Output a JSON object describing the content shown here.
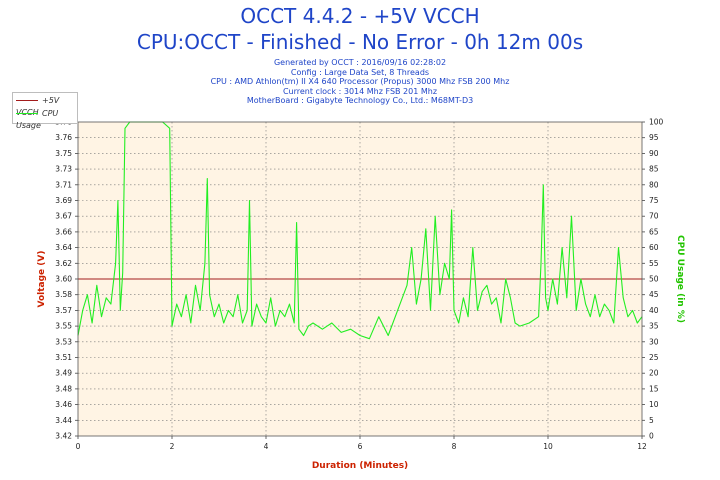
{
  "title_line1": "OCCT 4.4.2 - +5V VCCH",
  "title_line2": "CPU:OCCT - Finished - No Error - 0h 12m 00s",
  "info": {
    "generated": "Generated by OCCT : 2016/09/16 02:28:02",
    "config": "Config : Large Data Set, 8 Threads",
    "cpu": "CPU : AMD Athlon(tm) II X4 640 Processor (Propus) 3000 Mhz FSB 200 Mhz",
    "clock": "Current clock : 3014 Mhz FSB 201 Mhz",
    "motherboard": "MotherBoard : Gigabyte Technology Co., Ltd.: M68MT-D3"
  },
  "colors": {
    "title": "#1f45c8",
    "voltage_line": "#a31b1b",
    "cpu_line": "#22ee22",
    "axis_label": "#cc2200",
    "cpu_axis_label": "#22c400",
    "plot_background": "#fff4e4"
  },
  "chart_data": {
    "type": "line",
    "xlabel": "Duration (Minutes)",
    "ylabel": "Voltage (V)",
    "y2label": "CPU Usage (in %)",
    "xlim": [
      0,
      12
    ],
    "ylim": [
      3.42,
      3.78
    ],
    "y2lim": [
      0,
      100
    ],
    "x_ticks": [
      "0",
      "2",
      "4",
      "6",
      "8",
      "10",
      "12"
    ],
    "y_ticks": [
      "3.42",
      "3.44",
      "3.46",
      "3.48",
      "3.49",
      "3.51",
      "3.53",
      "3.55",
      "3.57",
      "3.58",
      "3.60",
      "3.62",
      "3.64",
      "3.66",
      "3.67",
      "3.69",
      "3.71",
      "3.73",
      "3.75",
      "3.76",
      "3.78"
    ],
    "y2_ticks": [
      "0",
      "5",
      "10",
      "15",
      "20",
      "25",
      "30",
      "35",
      "40",
      "45",
      "50",
      "55",
      "60",
      "65",
      "70",
      "75",
      "80",
      "85",
      "90",
      "95",
      "100"
    ],
    "grid": true,
    "legend_position": "top-left",
    "series": [
      {
        "name": "+5V VCCH",
        "axis": "left",
        "x": [
          0,
          12
        ],
        "values": [
          3.6,
          3.6
        ]
      },
      {
        "name": "CPU Usage",
        "axis": "right",
        "x": [
          0,
          0.1,
          0.2,
          0.3,
          0.4,
          0.5,
          0.6,
          0.7,
          0.8,
          0.85,
          0.9,
          0.95,
          1.0,
          1.1,
          1.2,
          1.4,
          1.6,
          1.8,
          1.95,
          2.0,
          2.1,
          2.2,
          2.3,
          2.4,
          2.5,
          2.6,
          2.7,
          2.75,
          2.8,
          2.9,
          3.0,
          3.1,
          3.2,
          3.3,
          3.4,
          3.5,
          3.6,
          3.65,
          3.7,
          3.8,
          3.9,
          4.0,
          4.1,
          4.2,
          4.3,
          4.4,
          4.5,
          4.6,
          4.65,
          4.7,
          4.8,
          4.9,
          5.0,
          5.2,
          5.4,
          5.6,
          5.8,
          6.0,
          6.2,
          6.4,
          6.6,
          6.8,
          7.0,
          7.1,
          7.2,
          7.3,
          7.4,
          7.5,
          7.6,
          7.7,
          7.8,
          7.9,
          7.95,
          8.0,
          8.1,
          8.2,
          8.3,
          8.4,
          8.5,
          8.6,
          8.7,
          8.8,
          8.9,
          9.0,
          9.1,
          9.2,
          9.3,
          9.4,
          9.6,
          9.8,
          9.85,
          9.9,
          9.95,
          10.0,
          10.1,
          10.2,
          10.3,
          10.4,
          10.5,
          10.6,
          10.7,
          10.8,
          10.9,
          11.0,
          11.1,
          11.2,
          11.3,
          11.4,
          11.5,
          11.6,
          11.7,
          11.8,
          11.9,
          12.0
        ],
        "values": [
          32,
          40,
          45,
          36,
          48,
          38,
          44,
          42,
          55,
          75,
          40,
          52,
          98,
          100,
          100,
          100,
          100,
          100,
          98,
          35,
          42,
          38,
          45,
          36,
          48,
          40,
          55,
          82,
          45,
          38,
          42,
          36,
          40,
          38,
          45,
          36,
          40,
          75,
          35,
          42,
          38,
          36,
          44,
          35,
          40,
          38,
          42,
          36,
          68,
          34,
          32,
          35,
          36,
          34,
          36,
          33,
          34,
          32,
          31,
          38,
          32,
          40,
          48,
          60,
          42,
          50,
          66,
          40,
          70,
          45,
          55,
          50,
          72,
          40,
          36,
          44,
          38,
          60,
          40,
          46,
          48,
          42,
          44,
          36,
          50,
          44,
          36,
          35,
          36,
          38,
          55,
          80,
          44,
          40,
          50,
          42,
          60,
          44,
          70,
          40,
          50,
          42,
          38,
          45,
          38,
          42,
          40,
          36,
          60,
          44,
          38,
          40,
          36,
          38
        ]
      }
    ]
  }
}
